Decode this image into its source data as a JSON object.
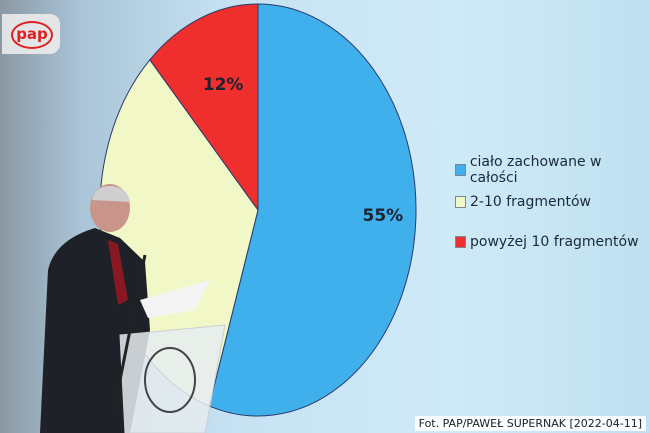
{
  "logo_text": "pap",
  "credit": "Fot. PAP/PAWEŁ SUPERNAK [2022-04-11]",
  "chart_data": {
    "type": "pie",
    "categories": [
      "ciało zachowane w całości",
      "2-10 fragmentów",
      "powyżej 10 fragmentów"
    ],
    "values": [
      55,
      33,
      12
    ],
    "data_labels": [
      "55%",
      "",
      "12%"
    ],
    "colors": [
      "#3fb0ec",
      "#f2f7c8",
      "#ef2e2e"
    ],
    "legend_position": "right"
  }
}
